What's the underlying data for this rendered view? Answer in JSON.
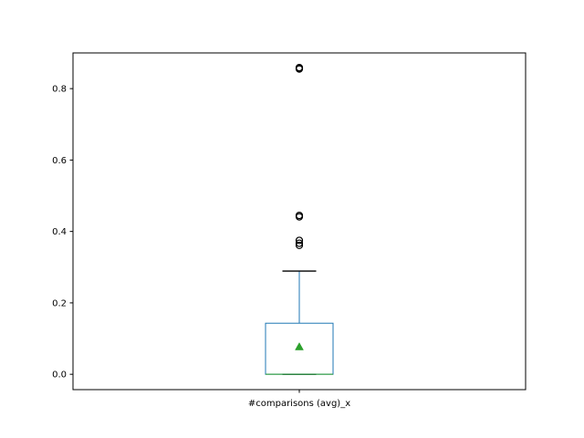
{
  "chart_data": {
    "type": "box",
    "title": "",
    "xlabel": "",
    "ylabel": "",
    "categories": [
      "#comparisons (avg)_x"
    ],
    "ylim": [
      -0.043,
      0.9
    ],
    "yticks": [
      0.0,
      0.2,
      0.4,
      0.6,
      0.8
    ],
    "ytick_labels": [
      "0.0",
      "0.2",
      "0.4",
      "0.6",
      "0.8"
    ],
    "grid": false,
    "box": {
      "q1": 0.0,
      "median": 0.0,
      "q3": 0.143,
      "whisker_low": 0.0,
      "whisker_high": 0.289,
      "mean": 0.077,
      "outliers": [
        0.361,
        0.367,
        0.375,
        0.441,
        0.445,
        0.855,
        0.857,
        0.859
      ]
    },
    "colors": {
      "box": "#1f77b4",
      "median": "#2ca02c",
      "mean": "#2ca02c",
      "cap": "#000000",
      "outlier": "#000000"
    }
  }
}
